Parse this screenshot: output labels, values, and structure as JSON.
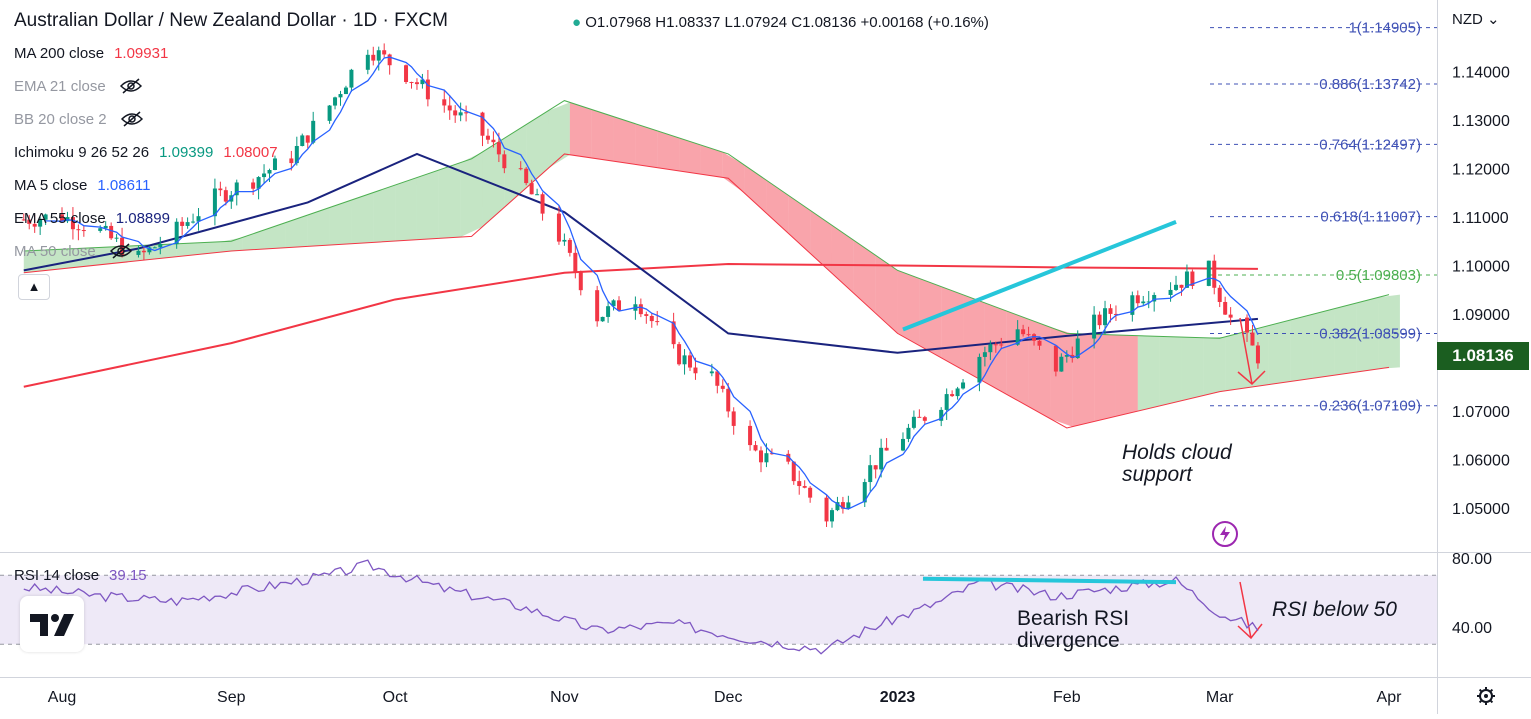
{
  "header": {
    "symbol": "Australian Dollar / New Zealand Dollar · 1D · FXCM",
    "ohlc": "O1.07968 H1.08337 L1.07924 C1.08136 +0.00168 (+0.16%)"
  },
  "currency": "NZD",
  "legend": [
    {
      "label": "MA 200 close",
      "value": "1.09931",
      "color": "#f23645",
      "hidden": false
    },
    {
      "label": "EMA 21 close",
      "value": "",
      "color": "#9598a1",
      "hidden": true
    },
    {
      "label": "BB 20 close 2",
      "value": "",
      "color": "#9598a1",
      "hidden": true
    },
    {
      "label": "Ichimoku 9 26 52 26",
      "value": "1.09399",
      "value2": "1.08007",
      "color": "#089981",
      "color2": "#f23645",
      "hidden": false
    },
    {
      "label": "MA 5 close",
      "value": "1.08611",
      "color": "#2962ff",
      "hidden": false
    },
    {
      "label": "EMA 55 close",
      "value": "1.08899",
      "color": "#1a237e",
      "hidden": false
    },
    {
      "label": "MA 50 close",
      "value": "",
      "color": "#9598a1",
      "hidden": true
    }
  ],
  "last_price": "1.08136",
  "rsi_legend": {
    "label": "RSI 14 close",
    "value": "39.15"
  },
  "annotations": {
    "cloud_note_1": "Holds cloud",
    "cloud_note_2": "support",
    "div_note_1": "Bearish RSI",
    "div_note_2": "divergence",
    "rsi_note": "RSI below 50"
  },
  "colors": {
    "up": "#089981",
    "down": "#f23645",
    "fib": "#3f51b5",
    "rsi": "#7e57c2",
    "trend": "#26c6da"
  },
  "chart_data": [
    {
      "type": "candlestick",
      "y_ticks": [
        1.05,
        1.06,
        1.07,
        1.08,
        1.09,
        1.1,
        1.11,
        1.12,
        1.13,
        1.14
      ],
      "y_tick_labels": [
        "1.05000",
        "1.06000",
        "1.07000",
        "1.08000",
        "1.09000",
        "1.10000",
        "1.11000",
        "1.12000",
        "1.13000",
        "1.14000"
      ],
      "ylim": [
        1.041,
        1.152
      ],
      "x_labels": [
        "Aug",
        "Sep",
        "Oct",
        "Nov",
        "Dec",
        "2023",
        "Feb",
        "Mar",
        "Apr"
      ],
      "x_label_dates": [
        "2022-08-01",
        "2022-09-01",
        "2022-10-01",
        "2022-11-01",
        "2022-12-01",
        "2023-01-01",
        "2023-02-01",
        "2023-03-01",
        "2023-04-01"
      ],
      "price_path": [
        [
          "2022-07-25",
          1.1095
        ],
        [
          "2022-08-01",
          1.1102
        ],
        [
          "2022-08-08",
          1.107
        ],
        [
          "2022-08-15",
          1.1015
        ],
        [
          "2022-08-22",
          1.1072
        ],
        [
          "2022-08-29",
          1.114
        ],
        [
          "2022-09-05",
          1.1178
        ],
        [
          "2022-09-12",
          1.1225
        ],
        [
          "2022-09-19",
          1.133
        ],
        [
          "2022-09-26",
          1.145
        ],
        [
          "2022-10-03",
          1.1395
        ],
        [
          "2022-10-10",
          1.133
        ],
        [
          "2022-10-17",
          1.127
        ],
        [
          "2022-10-24",
          1.118
        ],
        [
          "2022-10-31",
          1.106
        ],
        [
          "2022-11-07",
          1.0895
        ],
        [
          "2022-11-14",
          1.0935
        ],
        [
          "2022-11-21",
          1.082
        ],
        [
          "2022-11-28",
          1.077
        ],
        [
          "2022-12-05",
          1.062
        ],
        [
          "2022-12-12",
          1.058
        ],
        [
          "2022-12-19",
          1.048
        ],
        [
          "2022-12-26",
          1.057
        ],
        [
          "2023-01-02",
          1.065
        ],
        [
          "2023-01-09",
          1.072
        ],
        [
          "2023-01-16",
          1.0815
        ],
        [
          "2023-01-23",
          1.087
        ],
        [
          "2023-01-30",
          1.079
        ],
        [
          "2023-02-06",
          1.088
        ],
        [
          "2023-02-13",
          1.0935
        ],
        [
          "2023-02-20",
          1.096
        ],
        [
          "2023-02-27",
          1.099
        ],
        [
          "2023-03-03",
          1.089
        ],
        [
          "2023-03-08",
          1.0813
        ]
      ],
      "ma200": [
        [
          "2022-07-25",
          1.075
        ],
        [
          "2022-09-01",
          1.084
        ],
        [
          "2022-10-01",
          1.093
        ],
        [
          "2022-11-01",
          1.0985
        ],
        [
          "2022-12-01",
          1.1003
        ],
        [
          "2023-01-01",
          1.1
        ],
        [
          "2023-02-01",
          1.0996
        ],
        [
          "2023-03-08",
          1.0993
        ]
      ],
      "ema55": [
        [
          "2022-07-25",
          1.099
        ],
        [
          "2022-08-15",
          1.1035
        ],
        [
          "2022-09-15",
          1.113
        ],
        [
          "2022-10-05",
          1.123
        ],
        [
          "2022-11-01",
          1.111
        ],
        [
          "2022-12-01",
          1.086
        ],
        [
          "2023-01-01",
          1.082
        ],
        [
          "2023-02-01",
          1.0855
        ],
        [
          "2023-03-08",
          1.089
        ]
      ],
      "cloud_upper": [
        [
          "2022-07-25",
          1.103
        ],
        [
          "2022-09-01",
          1.105
        ],
        [
          "2022-10-15",
          1.122
        ],
        [
          "2022-11-01",
          1.134
        ],
        [
          "2022-12-01",
          1.123
        ],
        [
          "2023-01-01",
          1.099
        ],
        [
          "2023-02-01",
          1.086
        ],
        [
          "2023-03-01",
          1.085
        ],
        [
          "2023-04-01",
          1.094
        ]
      ],
      "cloud_lower": [
        [
          "2022-07-25",
          1.0985
        ],
        [
          "2022-09-01",
          1.103
        ],
        [
          "2022-10-15",
          1.106
        ],
        [
          "2022-11-01",
          1.123
        ],
        [
          "2022-12-01",
          1.118
        ],
        [
          "2023-01-01",
          1.086
        ],
        [
          "2023-02-01",
          1.0665
        ],
        [
          "2023-03-01",
          1.074
        ],
        [
          "2023-04-01",
          1.079
        ]
      ],
      "fibonacci": [
        {
          "ratio": "1",
          "price": 1.14905,
          "label": "1(1.14905)"
        },
        {
          "ratio": "0.886",
          "price": 1.13742,
          "label": "0.886(1.13742)"
        },
        {
          "ratio": "0.764",
          "price": 1.12497,
          "label": "0.764(1.12497)"
        },
        {
          "ratio": "0.618",
          "price": 1.11007,
          "label": "0.618(1.11007)"
        },
        {
          "ratio": "0.5",
          "price": 1.09803,
          "label": "0.5(1.09803)"
        },
        {
          "ratio": "0.382",
          "price": 1.08599,
          "label": "0.382(1.08599)"
        },
        {
          "ratio": "0.236",
          "price": 1.07109,
          "label": "0.236(1.07109)"
        }
      ],
      "trendline": [
        [
          "2023-01-02",
          1.0868
        ],
        [
          "2023-02-21",
          1.109
        ]
      ]
    },
    {
      "type": "line",
      "title": "RSI 14 close",
      "y_ticks": [
        40,
        80
      ],
      "y_tick_labels": [
        "40.00",
        "80.00"
      ],
      "ylim": [
        24,
        82
      ],
      "band": [
        30,
        70
      ],
      "rsi": [
        [
          "2022-07-25",
          63
        ],
        [
          "2022-08-08",
          58
        ],
        [
          "2022-08-22",
          55
        ],
        [
          "2022-09-05",
          62
        ],
        [
          "2022-09-19",
          70
        ],
        [
          "2022-09-26",
          76
        ],
        [
          "2022-10-10",
          62
        ],
        [
          "2022-10-24",
          52
        ],
        [
          "2022-11-07",
          38
        ],
        [
          "2022-11-21",
          42
        ],
        [
          "2022-12-05",
          33
        ],
        [
          "2022-12-19",
          27
        ],
        [
          "2022-12-26",
          38
        ],
        [
          "2023-01-09",
          55
        ],
        [
          "2023-01-16",
          66
        ],
        [
          "2023-01-30",
          58
        ],
        [
          "2023-02-13",
          64
        ],
        [
          "2023-02-21",
          67
        ],
        [
          "2023-03-01",
          48
        ],
        [
          "2023-03-08",
          39
        ]
      ],
      "divergence_line": [
        [
          "2023-01-02",
          68
        ],
        [
          "2023-02-21",
          66
        ]
      ]
    }
  ]
}
